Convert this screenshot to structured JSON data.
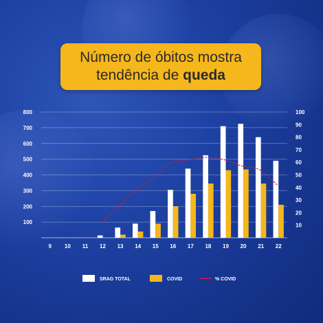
{
  "title": {
    "line1": "Número de óbitos mostra",
    "line2_prefix": "tendência de ",
    "line2_bold": "queda"
  },
  "colors": {
    "srag": "#ffffff",
    "covid": "#f6b71c",
    "pct": "#d11a3c",
    "grid": "#ffffff"
  },
  "chart_data": {
    "type": "bar",
    "categories": [
      "9",
      "10",
      "11",
      "12",
      "13",
      "14",
      "15",
      "16",
      "17",
      "18",
      "19",
      "20",
      "21",
      "22"
    ],
    "series": [
      {
        "name": "SRAG TOTAL",
        "type": "bar",
        "axis": "left",
        "values": [
          0,
          0,
          0,
          15,
          65,
          90,
          170,
          305,
          440,
          525,
          710,
          725,
          640,
          490
        ]
      },
      {
        "name": "COVID",
        "type": "bar",
        "axis": "left",
        "values": [
          0,
          0,
          0,
          0,
          20,
          40,
          90,
          200,
          280,
          345,
          430,
          435,
          345,
          210
        ]
      },
      {
        "name": "% COVID",
        "type": "line",
        "axis": "right",
        "values": [
          null,
          null,
          null,
          12,
          25,
          38,
          48,
          60,
          62,
          64,
          62,
          57,
          54,
          42
        ]
      }
    ],
    "y_left": {
      "ticks": [
        100,
        200,
        300,
        400,
        500,
        600,
        700,
        800
      ],
      "lim": [
        0,
        800
      ]
    },
    "y_right": {
      "ticks": [
        10,
        20,
        30,
        40,
        50,
        60,
        70,
        80,
        90,
        100
      ],
      "lim": [
        0,
        100
      ]
    },
    "grid": true,
    "legend_position": "bottom"
  }
}
